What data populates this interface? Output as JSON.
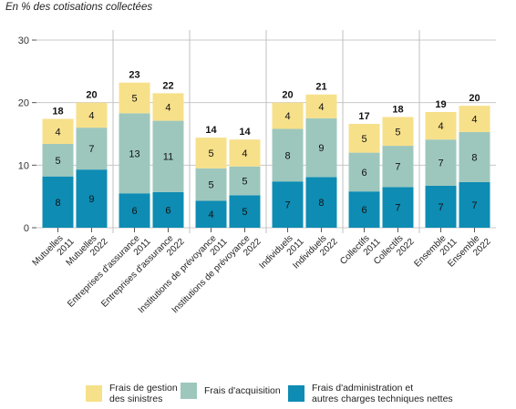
{
  "subtitle": "En % des cotisations collectées",
  "colors": {
    "gestion": "#f7e08a",
    "acquisition": "#9dc7bd",
    "administration": "#0e8cb3",
    "grid": "#c8c8c8",
    "separator": "#c0c0c0",
    "text": "#222222"
  },
  "chart_data": {
    "type": "bar",
    "stacked": true,
    "ylim": [
      0,
      30
    ],
    "yticks": [
      0,
      10,
      20,
      30
    ],
    "grid": true,
    "legend_position": "bottom",
    "categories": [
      "Mutuelles 2011",
      "Mutuelles 2022",
      "Entreprises d'assurance 2011",
      "Entreprises d'assurance 2022",
      "Institutions de prévoyance 2011",
      "Institutions de prévoyance 2022",
      "Individuels 2011",
      "Individuels 2022",
      "Collectifs 2011",
      "Collectifs 2022",
      "Ensemble 2011",
      "Ensemble 2022"
    ],
    "category_lines": [
      [
        "Mutuelles",
        "2011"
      ],
      [
        "Mutuelles",
        "2022"
      ],
      [
        "Entreprises d'assurance",
        "2011"
      ],
      [
        "Entreprises d'assurance",
        "2022"
      ],
      [
        "Institutions de prévoyance",
        "2011"
      ],
      [
        "Institutions de prévoyance",
        "2022"
      ],
      [
        "Individuels",
        "2011"
      ],
      [
        "Individuels",
        "2022"
      ],
      [
        "Collectifs",
        "2011"
      ],
      [
        "Collectifs",
        "2022"
      ],
      [
        "Ensemble",
        "2011"
      ],
      [
        "Ensemble",
        "2022"
      ]
    ],
    "series": [
      {
        "name": "Frais d'administration et autres charges techniques nettes",
        "values": [
          8.2,
          9.3,
          5.5,
          5.7,
          4.3,
          5.2,
          7.4,
          8.1,
          5.8,
          6.5,
          6.7,
          7.3
        ],
        "labels": [
          "8",
          "9",
          "6",
          "6",
          "4",
          "5",
          "7",
          "8",
          "6",
          "7",
          "7",
          "7"
        ]
      },
      {
        "name": "Frais d'acquisition",
        "values": [
          5.2,
          6.7,
          12.8,
          11.4,
          5.2,
          4.6,
          8.4,
          9.4,
          6.2,
          6.6,
          7.4,
          8.0
        ],
        "labels": [
          "5",
          "7",
          "13",
          "11",
          "5",
          "5",
          "8",
          "9",
          "6",
          "7",
          "7",
          "8"
        ]
      },
      {
        "name": "Frais de gestion des sinistres",
        "values": [
          4.0,
          4.0,
          4.9,
          4.4,
          4.9,
          4.3,
          4.2,
          3.8,
          4.6,
          4.6,
          4.4,
          4.2
        ],
        "labels": [
          "4",
          "4",
          "5",
          "4",
          "5",
          "4",
          "4",
          "4",
          "5",
          "5",
          "4",
          "4"
        ]
      }
    ],
    "totals": [
      "18",
      "20",
      "23",
      "22",
      "14",
      "14",
      "20",
      "21",
      "17",
      "18",
      "19",
      "20"
    ]
  },
  "legend": [
    {
      "label": "Frais de gestion\ndes sinistres",
      "color_key": "gestion"
    },
    {
      "label": "Frais d'acquisition",
      "color_key": "acquisition"
    },
    {
      "label": "Frais d'administration et\nautres charges techniques nettes",
      "color_key": "administration"
    }
  ]
}
